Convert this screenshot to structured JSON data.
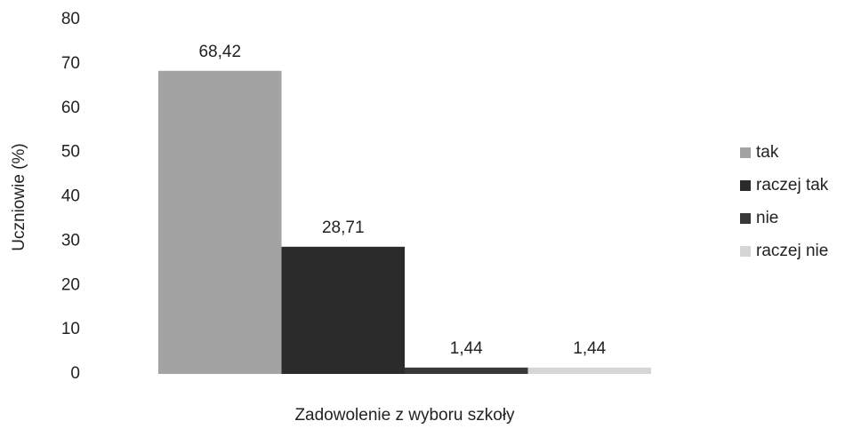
{
  "chart_data": {
    "type": "bar",
    "xlabel": "Zadowolenie z wyboru szkoły",
    "ylabel": "Uczniowie (%)",
    "categories": [
      null
    ],
    "series": [
      {
        "name": "tak",
        "color": "#a3a3a3",
        "values": [
          68.42
        ],
        "value_labels": [
          "68,42"
        ]
      },
      {
        "name": "raczej tak",
        "color": "#2b2b2b",
        "values": [
          28.71
        ],
        "value_labels": [
          "28,71"
        ]
      },
      {
        "name": "nie",
        "color": "#383838",
        "values": [
          1.44
        ],
        "value_labels": [
          "1,44"
        ]
      },
      {
        "name": "raczej nie",
        "color": "#d6d6d6",
        "values": [
          1.44
        ],
        "value_labels": [
          "1,44"
        ]
      }
    ],
    "ylim": [
      0,
      80
    ],
    "yticks": [
      0,
      10,
      20,
      30,
      40,
      50,
      60,
      70,
      80
    ],
    "grid": false,
    "legend": "right"
  }
}
